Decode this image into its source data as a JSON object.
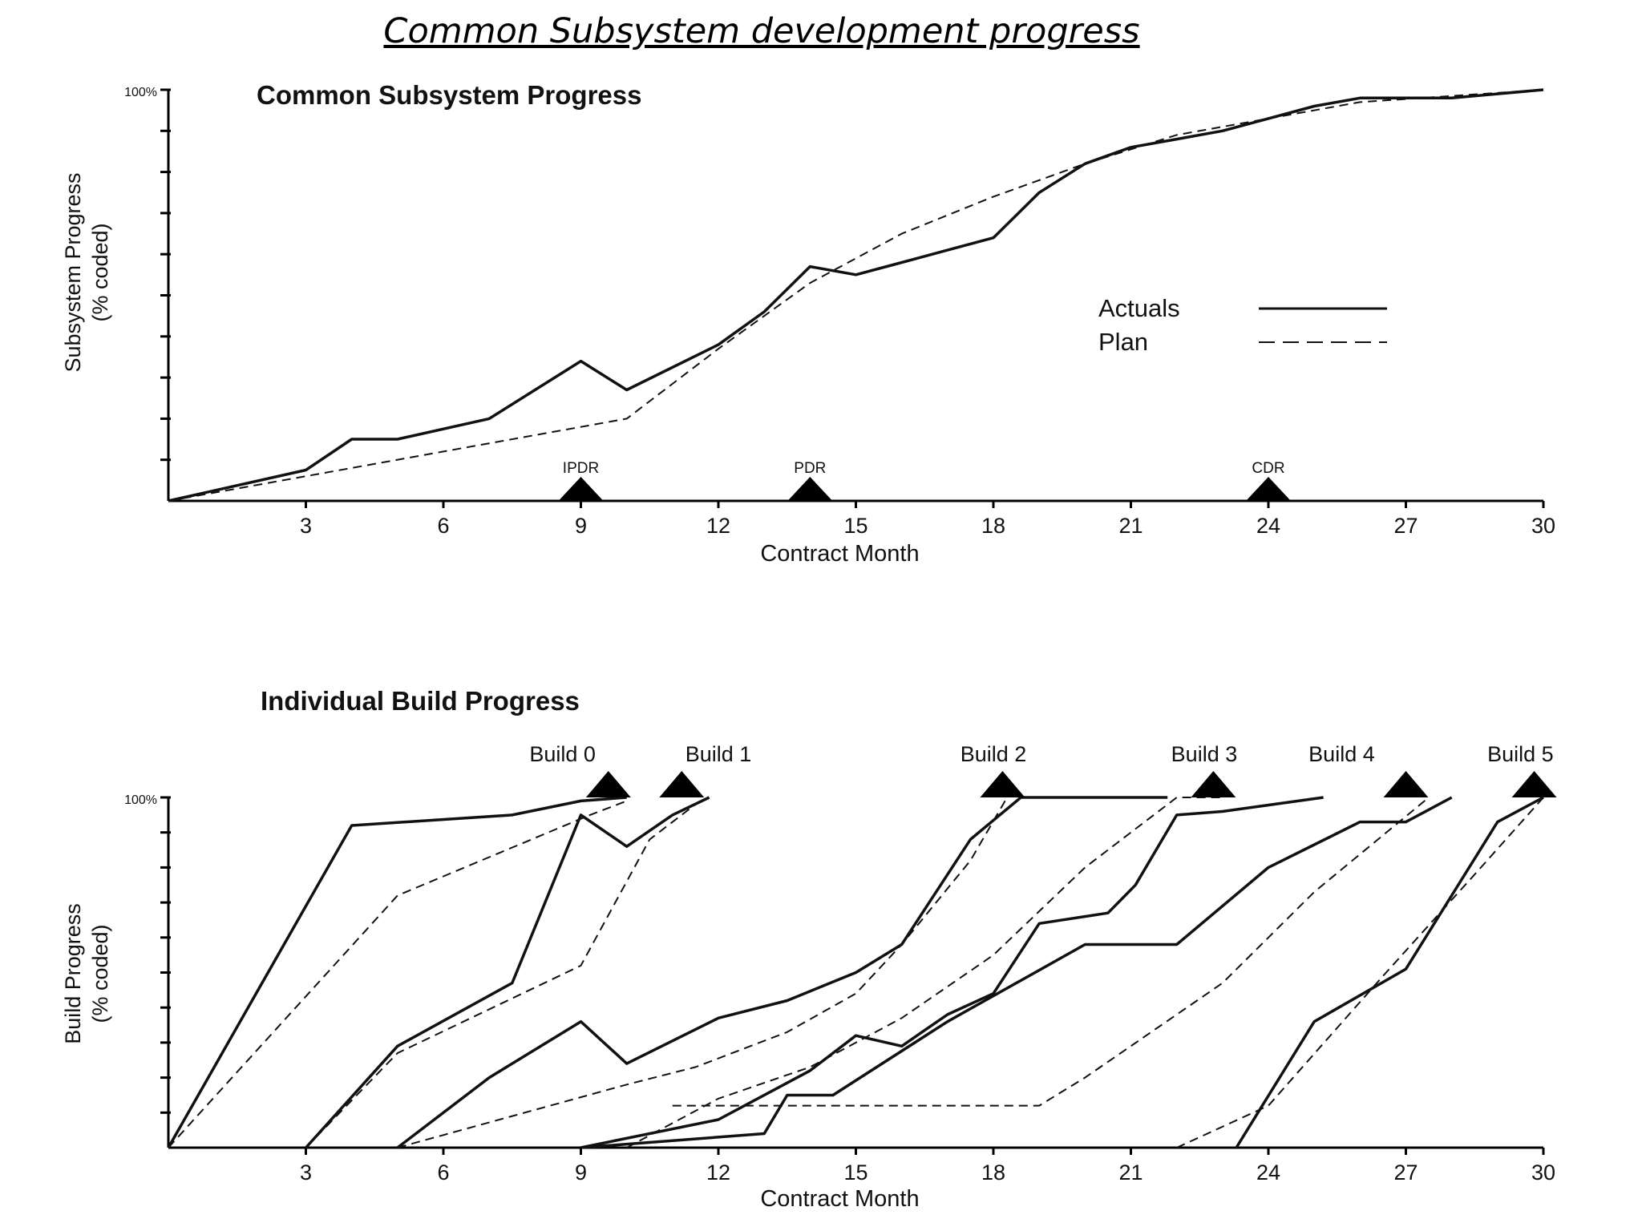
{
  "page": {
    "title": "Common Subsystem development progress"
  },
  "chart_data": [
    {
      "type": "line",
      "title": "Common Subsystem Progress",
      "xlabel": "Contract Month",
      "ylabel_line1": "Subsystem Progress",
      "ylabel_line2": "(% coded)",
      "xlim": [
        0,
        30
      ],
      "ylim": [
        0,
        100
      ],
      "y_top_label": "100%",
      "x_ticks": [
        3,
        6,
        9,
        12,
        15,
        18,
        21,
        24,
        27,
        30
      ],
      "x_tick_labels": [
        "3",
        "6",
        "9",
        "12",
        "15",
        "18",
        "21",
        "24",
        "27",
        "30"
      ],
      "y_minor_ticks": [
        10,
        20,
        30,
        40,
        50,
        60,
        70,
        80,
        90,
        100
      ],
      "legend": {
        "position": "right",
        "entries": [
          {
            "label": "Actuals",
            "style": "solid"
          },
          {
            "label": "Plan",
            "style": "dashed"
          }
        ]
      },
      "milestones": [
        {
          "label": "IPDR",
          "x": 9
        },
        {
          "label": "PDR",
          "x": 14
        },
        {
          "label": "CDR",
          "x": 24
        }
      ],
      "series": [
        {
          "name": "Actuals",
          "style": "solid",
          "x": [
            0,
            3,
            4,
            5,
            7,
            9,
            10,
            12,
            13,
            14,
            15,
            16,
            17,
            18,
            19,
            20,
            21,
            22,
            23,
            24,
            25,
            26,
            27,
            28,
            29,
            30
          ],
          "y": [
            0,
            7.5,
            15,
            15,
            20,
            34,
            27,
            38,
            46,
            57,
            55,
            58,
            61,
            64,
            75,
            82,
            86,
            88,
            90,
            93,
            96,
            98,
            98,
            98,
            99,
            100
          ]
        },
        {
          "name": "Plan",
          "style": "dashed",
          "x": [
            0,
            3,
            6,
            9,
            10,
            12,
            14,
            16,
            18,
            20,
            22,
            24,
            26,
            28,
            30
          ],
          "y": [
            0,
            6,
            12,
            18,
            20,
            37,
            53,
            65,
            74,
            82,
            89,
            93,
            97,
            98.5,
            100
          ]
        }
      ]
    },
    {
      "type": "line",
      "title": "Individual Build Progress",
      "xlabel": "Contract Month",
      "ylabel_line1": "Build Progress",
      "ylabel_line2": "(% coded)",
      "xlim": [
        0,
        30
      ],
      "ylim": [
        0,
        100
      ],
      "y_top_label": "100%",
      "x_ticks": [
        3,
        6,
        9,
        12,
        15,
        18,
        21,
        24,
        27,
        30
      ],
      "x_tick_labels": [
        "3",
        "6",
        "9",
        "12",
        "15",
        "18",
        "21",
        "24",
        "27",
        "30"
      ],
      "y_minor_ticks": [
        10,
        20,
        30,
        40,
        50,
        60,
        70,
        80,
        90,
        100
      ],
      "milestones": [
        {
          "label": "Build 0",
          "x": 9.6,
          "label_x": 8.6
        },
        {
          "label": "Build 1",
          "x": 11.2,
          "label_x": 12.0
        },
        {
          "label": "Build 2",
          "x": 18.2,
          "label_x": 18.0
        },
        {
          "label": "Build 3",
          "x": 22.8,
          "label_x": 22.6
        },
        {
          "label": "Build 4",
          "x": 27.0,
          "label_x": 25.6
        },
        {
          "label": "Build 5",
          "x": 29.8,
          "label_x": 29.5
        }
      ],
      "series": [
        {
          "style": "solid",
          "x": [
            0,
            4,
            7.5,
            9,
            10
          ],
          "y": [
            0,
            92,
            95,
            99,
            100
          ]
        },
        {
          "style": "dashed",
          "x": [
            0,
            5,
            9.2,
            10
          ],
          "y": [
            0,
            72,
            95,
            99
          ]
        },
        {
          "style": "solid",
          "x": [
            3,
            5,
            7.5,
            9,
            10,
            11,
            11.8
          ],
          "y": [
            0,
            29,
            47,
            95,
            86,
            95,
            100
          ]
        },
        {
          "style": "dashed",
          "x": [
            3,
            5,
            9,
            10.5,
            11.5
          ],
          "y": [
            0,
            27,
            52,
            88,
            98
          ]
        },
        {
          "style": "solid",
          "x": [
            5,
            7,
            9,
            10,
            12,
            13.5,
            15,
            16,
            17.5,
            18.6,
            21.8
          ],
          "y": [
            0,
            20,
            36,
            24,
            37,
            42,
            50,
            58,
            88,
            100,
            100
          ]
        },
        {
          "style": "dashed",
          "x": [
            5,
            10,
            11.5,
            13.5,
            15,
            16,
            17.5,
            18.3
          ],
          "y": [
            0,
            18,
            23,
            33,
            44,
            58,
            82,
            100
          ]
        },
        {
          "style": "solid",
          "x": [
            9,
            12,
            14,
            15,
            16,
            17,
            18,
            19,
            20.5,
            21.1,
            22,
            23,
            25.2
          ],
          "y": [
            0,
            8,
            22,
            32,
            29,
            38,
            44,
            64,
            67,
            75,
            95,
            96,
            100
          ]
        },
        {
          "style": "dashed",
          "x": [
            10,
            12,
            14,
            16,
            18,
            20,
            22,
            23
          ],
          "y": [
            0,
            14,
            23,
            37,
            55,
            80,
            100,
            100
          ]
        },
        {
          "style": "solid",
          "x": [
            9,
            13,
            13.5,
            14.5,
            17,
            20,
            21,
            22,
            23,
            24,
            26,
            27,
            28
          ],
          "y": [
            0,
            4,
            15,
            15,
            36,
            58,
            58,
            58,
            69,
            80,
            93,
            93,
            100
          ]
        },
        {
          "style": "dashed",
          "x": [
            11,
            19,
            20,
            23,
            25,
            27.5
          ],
          "y": [
            12,
            12,
            20,
            47,
            73,
            100
          ]
        },
        {
          "style": "solid",
          "x": [
            23.3,
            25,
            27,
            29,
            30
          ],
          "y": [
            0,
            36,
            51,
            93,
            100
          ]
        },
        {
          "style": "dashed",
          "x": [
            22,
            24,
            26.5,
            28.5,
            30
          ],
          "y": [
            0,
            12,
            49,
            78,
            100
          ]
        }
      ]
    }
  ]
}
